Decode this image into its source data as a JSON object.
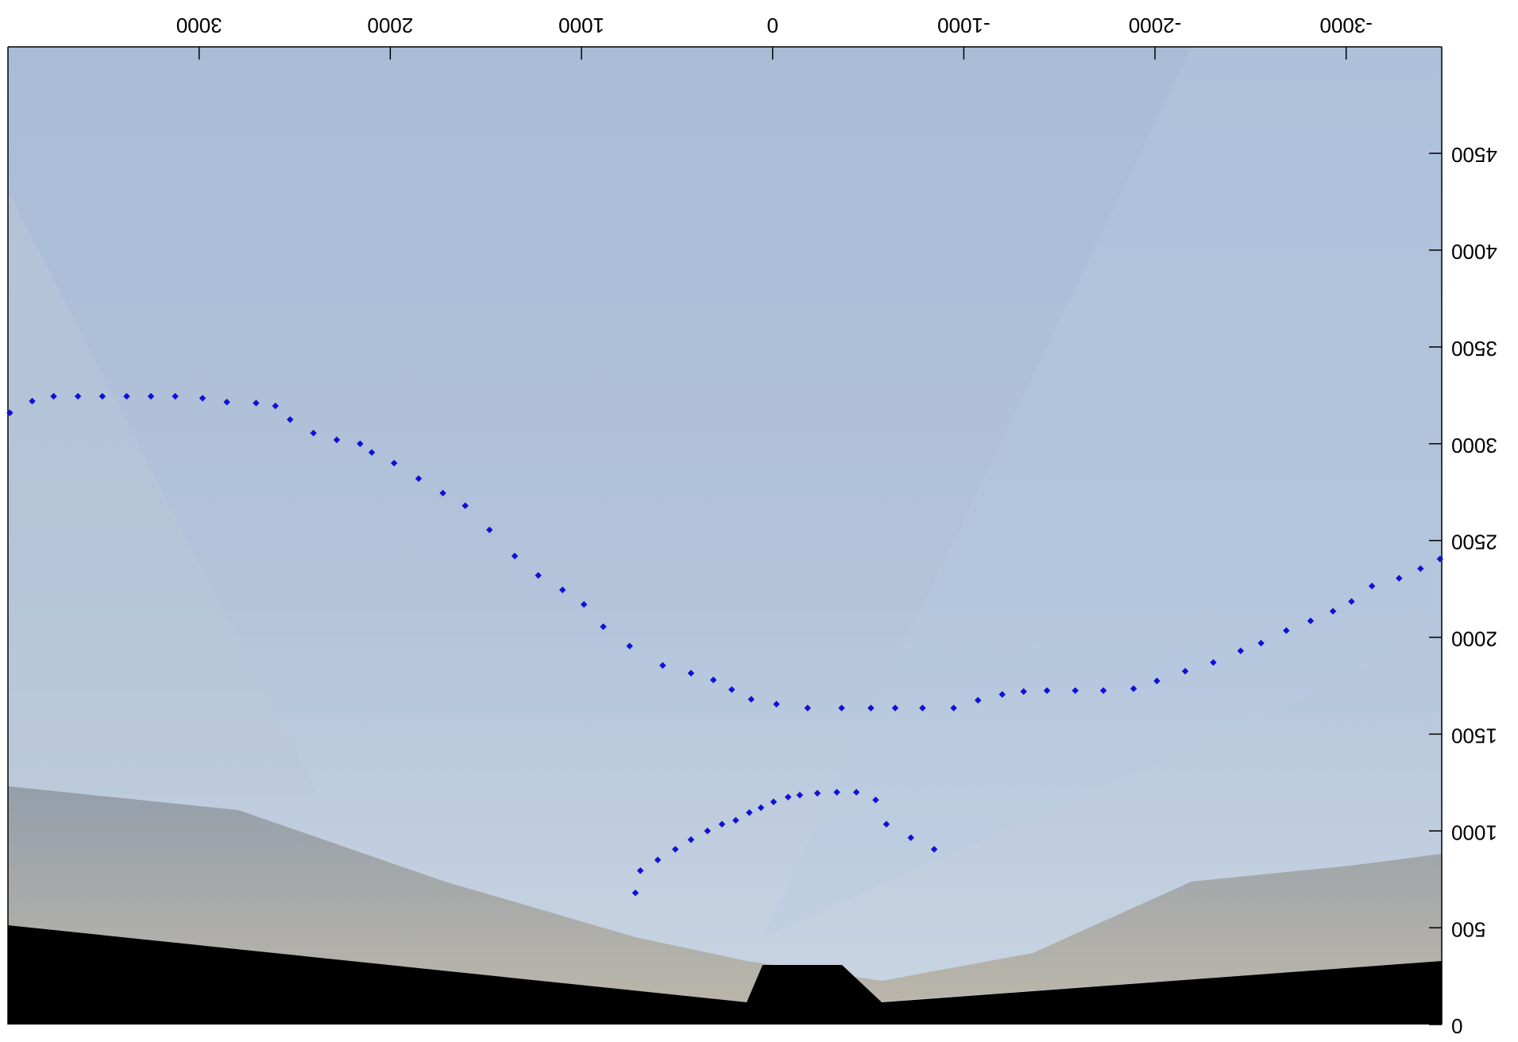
{
  "chart_data": {
    "type": "scatter",
    "xlim": [
      4000,
      -3500
    ],
    "ylim": [
      0,
      5050
    ],
    "xticks": [
      3000,
      2000,
      1000,
      0,
      -1000,
      -2000,
      -3000
    ],
    "yticks": [
      0,
      500,
      1000,
      1500,
      2000,
      2500,
      3000,
      3500,
      4000,
      4500
    ],
    "series": [
      {
        "color": "#1010d8",
        "x": [
          3990,
          3873,
          3761,
          3634,
          3506,
          3379,
          3252,
          3125,
          2982,
          2855,
          2702,
          2601,
          2524,
          2402,
          2280,
          2158,
          2097,
          1980,
          1852,
          1725,
          1608,
          1481,
          1349,
          1226,
          1099,
          987,
          886,
          748,
          575,
          427,
          310,
          214,
          112,
          -20,
          -183,
          -361,
          -514,
          -641,
          -784,
          -947,
          -1074,
          -1201,
          -1313,
          -1435,
          -1583,
          -1730,
          -1888,
          -2010,
          -2158,
          -2305,
          -2448,
          -2555,
          -2687,
          -2814,
          -2931,
          -3028,
          -3135,
          -3277,
          -3389,
          -3491
        ],
        "values": [
          3160,
          3220,
          3245,
          3245,
          3245,
          3245,
          3245,
          3245,
          3235,
          3215,
          3210,
          3195,
          3125,
          3055,
          3020,
          3000,
          2955,
          2900,
          2820,
          2745,
          2680,
          2555,
          2420,
          2320,
          2245,
          2170,
          2055,
          1955,
          1855,
          1815,
          1780,
          1730,
          1680,
          1655,
          1635,
          1635,
          1635,
          1635,
          1635,
          1635,
          1675,
          1705,
          1720,
          1725,
          1725,
          1725,
          1735,
          1775,
          1825,
          1870,
          1930,
          1970,
          2035,
          2085,
          2135,
          2185,
          2265,
          2305,
          2355,
          2405
        ]
      },
      {
        "color": "#1010d8",
        "x": [
          718,
          692,
          601,
          509,
          427,
          341,
          265,
          193,
          122,
          61,
          -5,
          -81,
          -142,
          -234,
          -336,
          -438,
          -539,
          -595,
          -723,
          -845
        ],
        "values": [
          680,
          795,
          850,
          905,
          955,
          1000,
          1035,
          1055,
          1095,
          1120,
          1150,
          1175,
          1185,
          1195,
          1200,
          1200,
          1160,
          1035,
          965,
          905
        ]
      }
    ]
  }
}
